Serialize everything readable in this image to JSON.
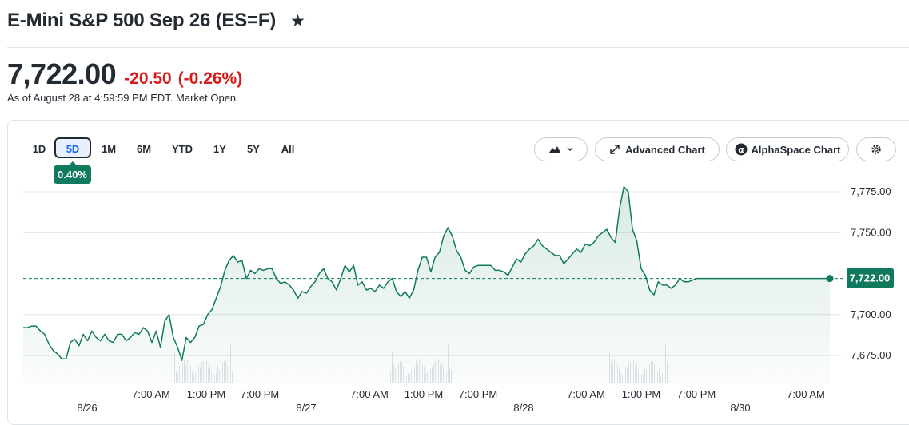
{
  "header": {
    "title": "E-Mini S&P 500 Sep 26 (ES=F)",
    "star_glyph": "★"
  },
  "quote": {
    "price": "7,722.00",
    "change": "-20.50",
    "change_percent": "(-0.26%)",
    "as_of": "As of August 28 at 4:59:59 PM EDT. Market Open.",
    "change_color": "#d41b1b"
  },
  "toolbar": {
    "ranges": [
      "1D",
      "5D",
      "1M",
      "6M",
      "YTD",
      "1Y",
      "5Y",
      "All"
    ],
    "active_range": "5D",
    "performance": "0.40%",
    "chart_type_icon": "mountain-chart-icon",
    "advanced_chart_label": "Advanced Chart",
    "alphaspace_label": "AlphaSpace Chart",
    "settings_icon": "gear-icon"
  },
  "chart_data": {
    "type": "area",
    "title": "",
    "xlabel": "",
    "ylabel": "",
    "ylim": [
      7660,
      7785
    ],
    "yticks": [
      "7,775.00",
      "7,750.00",
      "7,700.00",
      "7,675.00"
    ],
    "ytick_values": [
      7775,
      7750,
      7700,
      7675
    ],
    "grid": true,
    "current_price": 7722,
    "current_price_label": "7,722.00",
    "line_color": "#0f7a5e",
    "x_time_labels": [
      "7:00 AM",
      "1:00 PM",
      "7:00 PM",
      "7:00 AM",
      "1:00 PM",
      "7:00 PM",
      "7:00 AM",
      "1:00 PM",
      "7:00 PM",
      "7:00 AM"
    ],
    "x_date_labels": [
      "8/26",
      "8/27",
      "8/28",
      "8/30"
    ],
    "series": [
      {
        "values": [
          7692,
          7692,
          7693,
          7693,
          7690,
          7688,
          7682,
          7678,
          7676,
          7673,
          7673,
          7683,
          7685,
          7681,
          7688,
          7684,
          7690,
          7686,
          7684,
          7688,
          7684,
          7683,
          7688,
          7688,
          7684,
          7686,
          7689,
          7688,
          7692,
          7690,
          7683,
          7690,
          7680,
          7696,
          7700,
          7686,
          7680,
          7672,
          7686,
          7683,
          7686,
          7693,
          7694,
          7700,
          7703,
          7710,
          7717,
          7727,
          7733,
          7736,
          7732,
          7733,
          7722,
          7727,
          7725,
          7728,
          7727,
          7728,
          7728,
          7722,
          7719,
          7720,
          7718,
          7715,
          7710,
          7714,
          7713,
          7717,
          7720,
          7725,
          7728,
          7722,
          7720,
          7715,
          7722,
          7730,
          7726,
          7730,
          7718,
          7720,
          7715,
          7716,
          7714,
          7718,
          7716,
          7720,
          7722,
          7714,
          7711,
          7714,
          7710,
          7715,
          7727,
          7735,
          7735,
          7726,
          7735,
          7738,
          7748,
          7753,
          7748,
          7739,
          7735,
          7727,
          7725,
          7729,
          7730,
          7730,
          7730,
          7730,
          7727,
          7727,
          7726,
          7724,
          7729,
          7734,
          7732,
          7737,
          7740,
          7742,
          7746,
          7742,
          7740,
          7738,
          7736,
          7736,
          7731,
          7734,
          7737,
          7740,
          7738,
          7743,
          7742,
          7744,
          7748,
          7750,
          7752,
          7747,
          7744,
          7765,
          7778,
          7775,
          7752,
          7745,
          7728,
          7724,
          7715,
          7712,
          7720,
          7718,
          7718,
          7716,
          7718,
          7722,
          7720,
          7720,
          7721,
          7722,
          7722,
          7722,
          7722,
          7722,
          7722,
          7722,
          7722,
          7722,
          7722,
          7722,
          7722,
          7722,
          7722,
          7722,
          7722,
          7722,
          7722,
          7722,
          7722,
          7722,
          7722,
          7722,
          7722,
          7722,
          7722,
          7722,
          7722,
          7722,
          7722,
          7722,
          7722
        ]
      }
    ],
    "volume_visible": true
  }
}
